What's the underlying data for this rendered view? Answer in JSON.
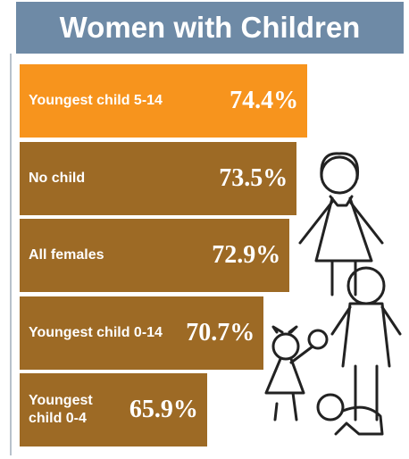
{
  "chart_data": {
    "type": "bar",
    "orientation": "horizontal",
    "title": "Women with Children",
    "categories": [
      "Youngest child 5-14",
      "No child",
      "All females",
      "Youngest child 0-14",
      "Youngest child 0-4"
    ],
    "values": [
      74.4,
      73.5,
      72.9,
      70.7,
      65.9
    ],
    "value_labels": [
      "74.4%",
      "73.5%",
      "72.9%",
      "70.7%",
      "65.9%"
    ],
    "colors": [
      "#f7941d",
      "#9d6a25",
      "#9d6a25",
      "#9d6a25",
      "#9d6a25"
    ],
    "xlim": [
      50,
      80
    ]
  }
}
